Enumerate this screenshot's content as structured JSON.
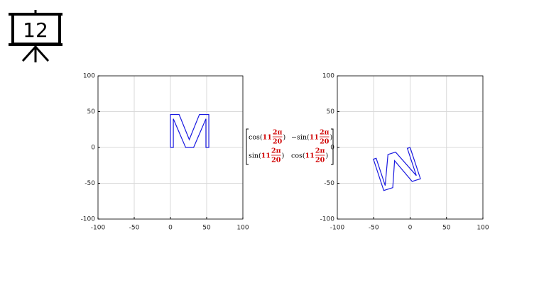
{
  "slide_number": "12",
  "chart_data": [
    {
      "type": "line",
      "xlim": [
        -100,
        100
      ],
      "ylim": [
        -100,
        100
      ],
      "xticks": [
        -100,
        -50,
        0,
        50,
        100
      ],
      "yticks": [
        -100,
        -50,
        0,
        50,
        100
      ],
      "grid": true,
      "series": [
        {
          "color": "#1a1ae0",
          "x": [
            0,
            0,
            12,
            26,
            40,
            53,
            53,
            49,
            49,
            32,
            21,
            4,
            4,
            0
          ],
          "values": [
            0,
            46,
            46,
            11,
            46,
            46,
            0,
            0,
            40,
            0,
            0,
            40,
            0,
            0
          ]
        }
      ]
    },
    {
      "type": "line",
      "xlim": [
        -100,
        100
      ],
      "ylim": [
        -100,
        100
      ],
      "xticks": [
        -100,
        -50,
        0,
        50,
        100
      ],
      "yticks": [
        -100,
        -50,
        0,
        50,
        100
      ],
      "grid": true,
      "series": [
        {
          "color": "#1a1ae0",
          "x": [
            0,
            14.21,
            2.8,
            -21.33,
            -23.83,
            -36.2,
            -50.41,
            -46.6,
            -34.24,
            -30.44,
            -19.97,
            8.56,
            -3.8,
            0
          ],
          "values": [
            0,
            -43.75,
            -47.46,
            -18.49,
            -56.11,
            -60.13,
            -16.38,
            -15.14,
            -53.18,
            -9.89,
            -6.49,
            -39.28,
            -1.24,
            0
          ]
        }
      ]
    }
  ],
  "matrix": {
    "rows": [
      [
        {
          "prefix": "cos(",
          "k": "11",
          "num": "2π",
          "den": "20",
          "suffix": ")"
        },
        {
          "prefix": "−sin(",
          "k": "11",
          "num": "2π",
          "den": "20",
          "suffix": ")"
        }
      ],
      [
        {
          "prefix": "sin(",
          "k": "11",
          "num": "2π",
          "den": "20",
          "suffix": ")"
        },
        {
          "prefix": "cos(",
          "k": "11",
          "num": "2π",
          "den": "20",
          "suffix": ")"
        }
      ]
    ]
  }
}
